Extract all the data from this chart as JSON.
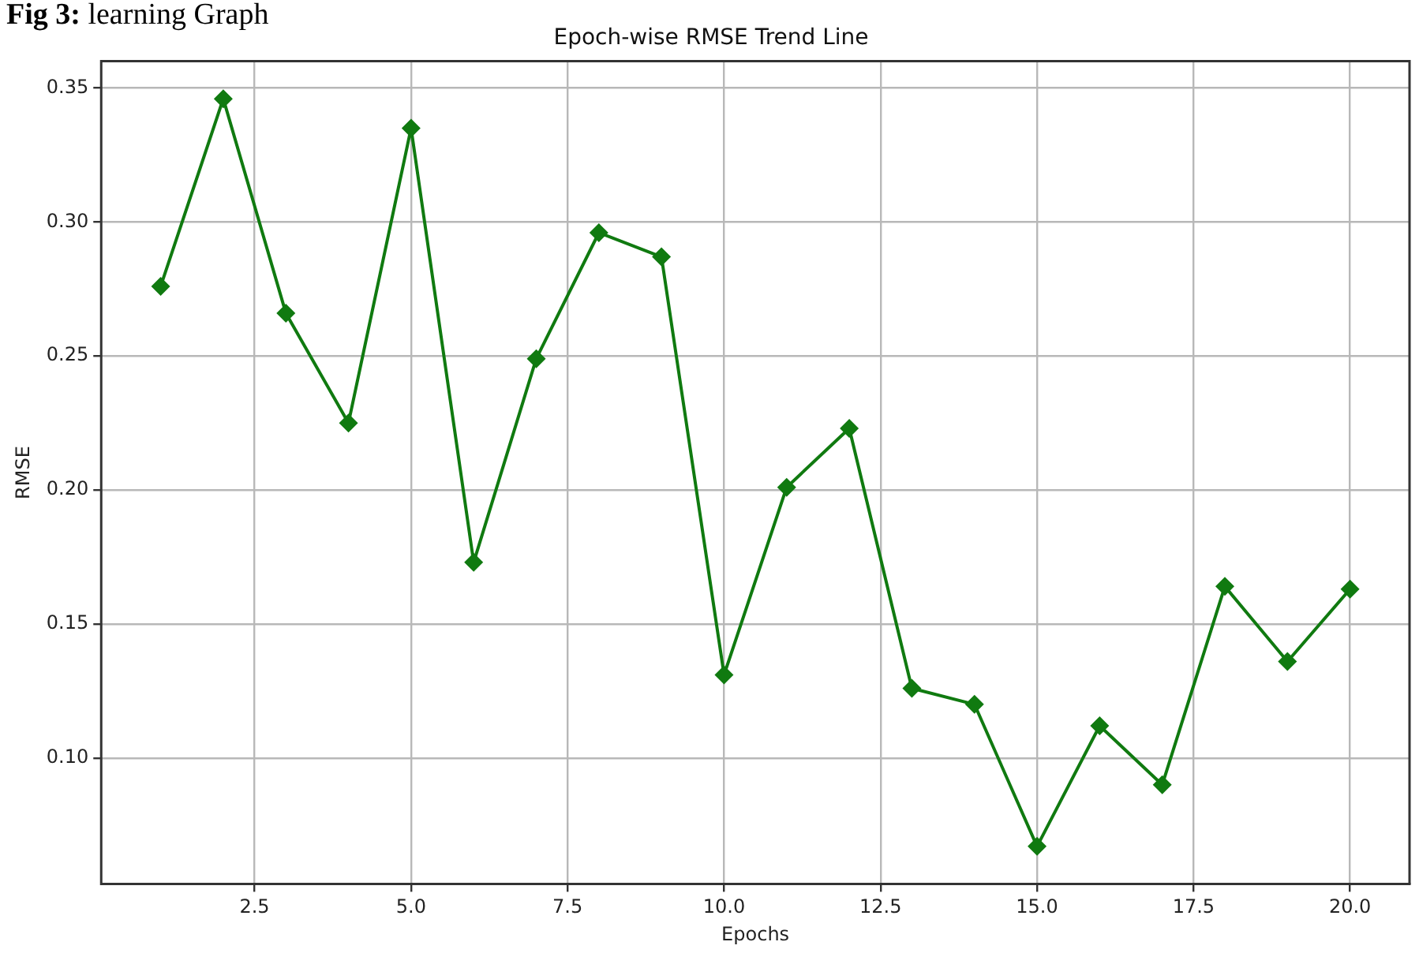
{
  "chart_data": {
    "type": "line",
    "title": "Epoch-wise RMSE Trend Line",
    "xlabel": "Epochs",
    "ylabel": "RMSE",
    "annotations": [
      "Fig 3: learning Graph"
    ],
    "x": [
      1,
      2,
      3,
      4,
      5,
      6,
      7,
      8,
      9,
      10,
      11,
      12,
      13,
      14,
      15,
      16,
      17,
      18,
      19,
      20
    ],
    "series": [
      {
        "color": "#107a10",
        "values": [
          0.276,
          0.346,
          0.266,
          0.225,
          0.335,
          0.173,
          0.249,
          0.296,
          0.287,
          0.131,
          0.201,
          0.223,
          0.126,
          0.12,
          0.067,
          0.112,
          0.09,
          0.164,
          0.136,
          0.163
        ]
      }
    ],
    "xlim": [
      0.05,
      20.95
    ],
    "xticks": [
      {
        "value": 2.5,
        "label": "2.5"
      },
      {
        "value": 5,
        "label": "5.0"
      },
      {
        "value": 7.5,
        "label": "7.5"
      },
      {
        "value": 10,
        "label": "10.0"
      },
      {
        "value": 12.5,
        "label": "12.5"
      },
      {
        "value": 15,
        "label": "15.0"
      },
      {
        "value": 17.5,
        "label": "17.5"
      },
      {
        "value": 20,
        "label": "20.0"
      }
    ],
    "ylim": [
      0.053,
      0.36
    ],
    "yticks": [
      {
        "value": 0.1,
        "label": "0.10"
      },
      {
        "value": 0.15,
        "label": "0.15"
      },
      {
        "value": 0.2,
        "label": "0.20"
      },
      {
        "value": 0.25,
        "label": "0.25"
      },
      {
        "value": 0.3,
        "label": "0.30"
      },
      {
        "value": 0.35,
        "label": "0.35"
      }
    ],
    "grid": true,
    "marker": "diamond",
    "line_style": "solid"
  }
}
